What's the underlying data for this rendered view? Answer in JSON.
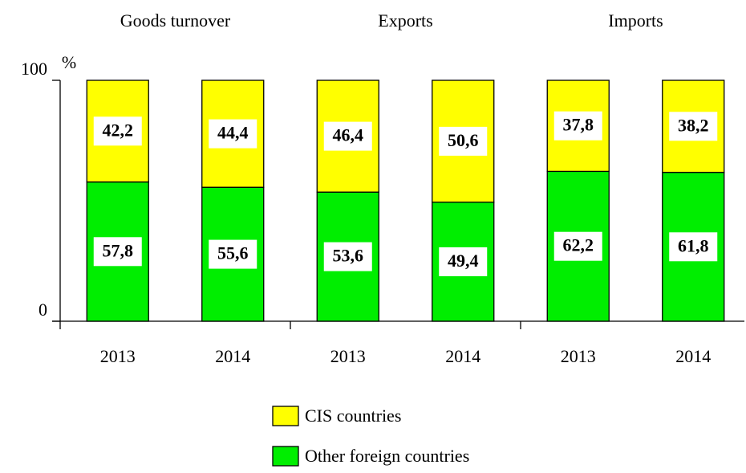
{
  "chart_data": {
    "type": "stacked_bar",
    "y_label": "%",
    "groups": [
      "Goods turnover",
      "Exports",
      "Imports"
    ],
    "categories": [
      "2013",
      "2014",
      "2013",
      "2014",
      "2013",
      "2014"
    ],
    "series": [
      {
        "name": "Other foreign countries",
        "color": "#00ee00",
        "values": [
          57.8,
          55.6,
          53.6,
          49.4,
          62.2,
          61.8
        ],
        "value_labels": [
          "57,8",
          "55,6",
          "53,6",
          "49,4",
          "62,2",
          "61,8"
        ]
      },
      {
        "name": "CIS countries",
        "color": "#ffff00",
        "values": [
          42.2,
          44.4,
          46.4,
          50.6,
          37.8,
          38.2
        ],
        "value_labels": [
          "42,2",
          "44,4",
          "46,4",
          "50,6",
          "37,8",
          "38,2"
        ]
      }
    ],
    "ylim": [
      0,
      100
    ],
    "yticks": [
      0,
      100
    ]
  }
}
